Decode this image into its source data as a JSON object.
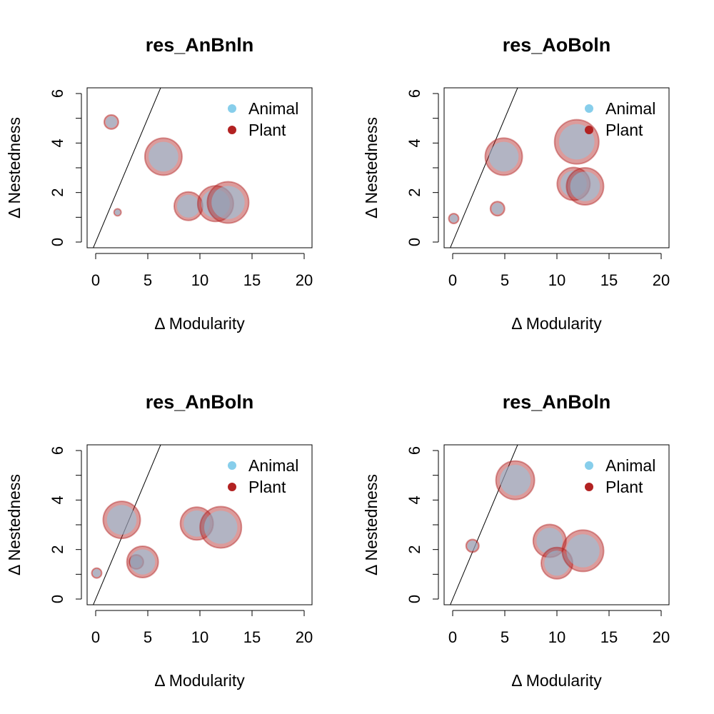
{
  "colors": {
    "animal": "#87ceeb",
    "plant": "#b22222",
    "line": "#000000",
    "frame": "#000000"
  },
  "chart_data": [
    {
      "type": "scatter",
      "title": "res_AnBnln",
      "xlabel": "Δ Modularity",
      "ylabel": "Δ Nestedness",
      "xlim": [
        0,
        20
      ],
      "ylim": [
        0,
        6
      ],
      "xticks": [
        "0",
        "5",
        "10",
        "15",
        "20"
      ],
      "yticks": [
        "0",
        "2",
        "4",
        "6"
      ],
      "legend": {
        "position": "top-right",
        "entries": [
          "Animal",
          "Plant"
        ]
      },
      "reference_line": {
        "slope": 1,
        "intercept": 0
      },
      "points": [
        {
          "x": 1.5,
          "y": 4.85,
          "size": 1
        },
        {
          "x": 2.1,
          "y": 1.2,
          "size": 0.5
        },
        {
          "x": 6.5,
          "y": 3.45,
          "size": 2.6
        },
        {
          "x": 8.9,
          "y": 1.45,
          "size": 2
        },
        {
          "x": 11.5,
          "y": 1.55,
          "size": 2.5
        },
        {
          "x": 12.7,
          "y": 1.6,
          "size": 2.9
        }
      ]
    },
    {
      "type": "scatter",
      "title": "res_AoBoln",
      "xlabel": "Δ Modularity",
      "ylabel": "Δ Nestedness",
      "xlim": [
        0,
        20
      ],
      "ylim": [
        0,
        6
      ],
      "xticks": [
        "0",
        "5",
        "10",
        "15",
        "20"
      ],
      "yticks": [
        "0",
        "2",
        "4",
        "6"
      ],
      "legend": {
        "position": "top-right",
        "entries": [
          "Animal",
          "Plant"
        ]
      },
      "reference_line": {
        "slope": 1,
        "intercept": 0
      },
      "points": [
        {
          "x": 0.1,
          "y": 0.95,
          "size": 0.7
        },
        {
          "x": 4.3,
          "y": 1.35,
          "size": 1
        },
        {
          "x": 4.9,
          "y": 3.45,
          "size": 2.6
        },
        {
          "x": 11.9,
          "y": 4.05,
          "size": 3.1
        },
        {
          "x": 11.6,
          "y": 2.35,
          "size": 2.3
        },
        {
          "x": 12.7,
          "y": 2.25,
          "size": 2.6
        }
      ]
    },
    {
      "type": "scatter",
      "title": "res_AnBoln",
      "xlabel": "Δ Modularity",
      "ylabel": "Δ Nestedness",
      "xlim": [
        0,
        20
      ],
      "ylim": [
        0,
        6
      ],
      "xticks": [
        "0",
        "5",
        "10",
        "15",
        "20"
      ],
      "yticks": [
        "0",
        "2",
        "4",
        "6"
      ],
      "legend": {
        "position": "top-right",
        "entries": [
          "Animal",
          "Plant"
        ]
      },
      "reference_line": {
        "slope": 1,
        "intercept": 0
      },
      "points": [
        {
          "x": 0.1,
          "y": 1.05,
          "size": 0.7
        },
        {
          "x": 2.5,
          "y": 3.2,
          "size": 2.6
        },
        {
          "x": 3.9,
          "y": 1.5,
          "size": 1
        },
        {
          "x": 4.5,
          "y": 1.5,
          "size": 2.2
        },
        {
          "x": 9.7,
          "y": 3.05,
          "size": 2.3
        },
        {
          "x": 12,
          "y": 2.9,
          "size": 2.9
        }
      ]
    },
    {
      "type": "scatter",
      "title": "res_AnBoln",
      "xlabel": "Δ Modularity",
      "ylabel": "Δ Nestedness",
      "xlim": [
        0,
        20
      ],
      "ylim": [
        0,
        6
      ],
      "xticks": [
        "0",
        "5",
        "10",
        "15",
        "20"
      ],
      "yticks": [
        "0",
        "2",
        "4",
        "6"
      ],
      "legend": {
        "position": "top-right",
        "entries": [
          "Animal",
          "Plant"
        ]
      },
      "reference_line": {
        "slope": 1,
        "intercept": 0
      },
      "points": [
        {
          "x": 1.9,
          "y": 2.15,
          "size": 0.9
        },
        {
          "x": 6,
          "y": 4.8,
          "size": 2.7
        },
        {
          "x": 9.3,
          "y": 2.35,
          "size": 2.3
        },
        {
          "x": 10,
          "y": 1.45,
          "size": 2.2
        },
        {
          "x": 12.5,
          "y": 1.95,
          "size": 2.9
        }
      ]
    }
  ]
}
